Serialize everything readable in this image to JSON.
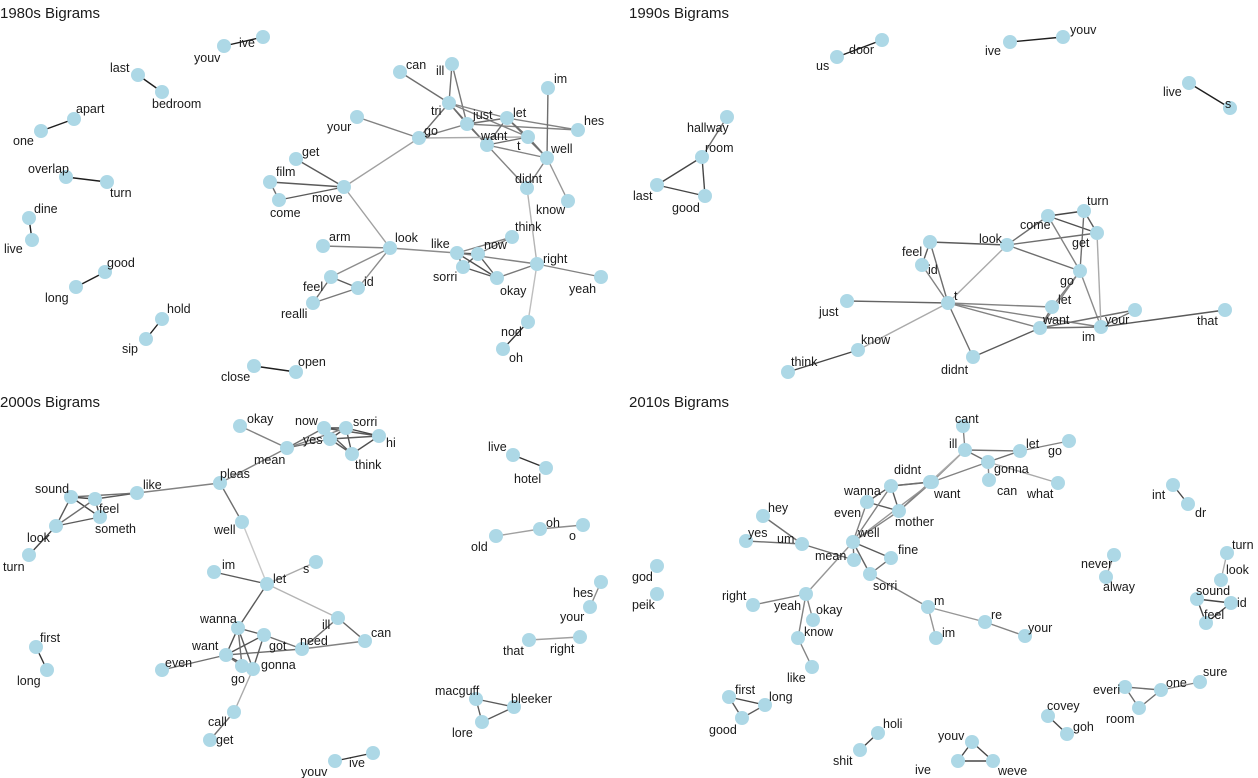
{
  "panels": [
    {
      "title": "1980s Bigrams",
      "nodes": [
        "youv",
        "ive",
        "last",
        "bedroom",
        "apart",
        "one",
        "overlap",
        "turn",
        "dine",
        "live",
        "good",
        "long",
        "hold",
        "sip",
        "close",
        "open",
        "can",
        "ill",
        "im",
        "tri",
        "just",
        "let",
        "your",
        "go",
        "want",
        "t",
        "hes",
        "well",
        "get",
        "film",
        "move",
        "come",
        "didnt",
        "know",
        "arm",
        "look",
        "like",
        "now",
        "think",
        "right",
        "yeah",
        "feel",
        "id",
        "realli",
        "sorri",
        "okay",
        "nod",
        "oh"
      ],
      "edges": [
        [
          "youv",
          "ive",
          1
        ],
        [
          "last",
          "bedroom",
          1
        ],
        [
          "one",
          "apart",
          1
        ],
        [
          "overlap",
          "turn",
          1
        ],
        [
          "dine",
          "live",
          1
        ],
        [
          "long",
          "good",
          1
        ],
        [
          "sip",
          "hold",
          1
        ],
        [
          "close",
          "open",
          1
        ],
        [
          "can",
          "tri",
          0.6
        ],
        [
          "ill",
          "tri",
          0.6
        ],
        [
          "ill",
          "just",
          0.55
        ],
        [
          "tri",
          "just",
          0.7
        ],
        [
          "tri",
          "go",
          0.6
        ],
        [
          "tri",
          "want",
          0.6
        ],
        [
          "tri",
          "let",
          0.5
        ],
        [
          "tri",
          "t",
          0.5
        ],
        [
          "just",
          "want",
          0.6
        ],
        [
          "just",
          "let",
          0.6
        ],
        [
          "just",
          "hes",
          0.5
        ],
        [
          "want",
          "let",
          0.6
        ],
        [
          "want",
          "t",
          0.6
        ],
        [
          "want",
          "well",
          0.5
        ],
        [
          "let",
          "well",
          0.6
        ],
        [
          "let",
          "hes",
          0.5
        ],
        [
          "let",
          "t",
          0.6
        ],
        [
          "im",
          "well",
          0.6
        ],
        [
          "t",
          "well",
          0.6
        ],
        [
          "your",
          "go",
          0.5
        ],
        [
          "go",
          "just",
          0.5
        ],
        [
          "go",
          "t",
          0.3
        ],
        [
          "go",
          "move",
          0.35
        ],
        [
          "get",
          "move",
          0.7
        ],
        [
          "film",
          "move",
          0.7
        ],
        [
          "come",
          "move",
          0.7
        ],
        [
          "film",
          "come",
          0.6
        ],
        [
          "want",
          "didnt",
          0.5
        ],
        [
          "didnt",
          "well",
          0.5
        ],
        [
          "well",
          "know",
          0.4
        ],
        [
          "move",
          "look",
          0.35
        ],
        [
          "arm",
          "look",
          0.5
        ],
        [
          "look",
          "like",
          0.45
        ],
        [
          "look",
          "feel",
          0.45
        ],
        [
          "look",
          "id",
          0.45
        ],
        [
          "feel",
          "id",
          0.7
        ],
        [
          "feel",
          "realli",
          0.6
        ],
        [
          "id",
          "realli",
          0.55
        ],
        [
          "like",
          "now",
          0.75
        ],
        [
          "like",
          "sorri",
          0.75
        ],
        [
          "like",
          "okay",
          0.75
        ],
        [
          "now",
          "sorri",
          0.75
        ],
        [
          "now",
          "okay",
          0.7
        ],
        [
          "sorri",
          "okay",
          0.7
        ],
        [
          "like",
          "think",
          0.5
        ],
        [
          "now",
          "think",
          0.5
        ],
        [
          "like",
          "right",
          0.5
        ],
        [
          "okay",
          "right",
          0.55
        ],
        [
          "right",
          "yeah",
          0.5
        ],
        [
          "right",
          "didnt",
          0.25
        ],
        [
          "right",
          "nod",
          0.2
        ],
        [
          "nod",
          "oh",
          0.9
        ]
      ]
    },
    {
      "title": "1990s Bigrams",
      "nodes": [
        "door",
        "us",
        "youv",
        "ive",
        "live",
        "s",
        "hallway",
        "room",
        "last",
        "good",
        "turn",
        "come",
        "look",
        "get",
        "feel",
        "id",
        "go",
        "just",
        "t",
        "let",
        "want",
        "your",
        "that",
        "im",
        "know",
        "think",
        "didnt"
      ],
      "edges": [
        [
          "us",
          "door",
          1
        ],
        [
          "ive",
          "youv",
          1
        ],
        [
          "live",
          "s",
          1
        ],
        [
          "hallway",
          "room",
          0.6
        ],
        [
          "room",
          "last",
          0.8
        ],
        [
          "room",
          "good",
          0.8
        ],
        [
          "last",
          "good",
          0.8
        ],
        [
          "come",
          "turn",
          0.8
        ],
        [
          "come",
          "get",
          0.75
        ],
        [
          "come",
          "look",
          0.6
        ],
        [
          "turn",
          "get",
          0.7
        ],
        [
          "turn",
          "go",
          0.6
        ],
        [
          "look",
          "get",
          0.6
        ],
        [
          "look",
          "go",
          0.6
        ],
        [
          "come",
          "go",
          0.5
        ],
        [
          "feel",
          "look",
          0.7
        ],
        [
          "feel",
          "id",
          0.7
        ],
        [
          "feel",
          "t",
          0.6
        ],
        [
          "id",
          "t",
          0.5
        ],
        [
          "look",
          "t",
          0.3
        ],
        [
          "just",
          "t",
          0.65
        ],
        [
          "t",
          "let",
          0.5
        ],
        [
          "t",
          "want",
          0.5
        ],
        [
          "t",
          "your",
          0.5
        ],
        [
          "t",
          "know",
          0.3
        ],
        [
          "t",
          "didnt",
          0.6
        ],
        [
          "go",
          "let",
          0.5
        ],
        [
          "go",
          "want",
          0.5
        ],
        [
          "go",
          "your",
          0.45
        ],
        [
          "let",
          "want",
          0.6
        ],
        [
          "want",
          "your",
          0.6
        ],
        [
          "want",
          "im",
          0.6
        ],
        [
          "im",
          "your",
          0.55
        ],
        [
          "your",
          "that",
          0.7
        ],
        [
          "want",
          "didnt",
          0.7
        ],
        [
          "know",
          "think",
          0.8
        ],
        [
          "get",
          "your",
          0.3
        ]
      ]
    },
    {
      "title": "2000s Bigrams",
      "nodes": [
        "okay",
        "now",
        "sorri",
        "yes",
        "hi",
        "mean",
        "think",
        "pleas",
        "like",
        "sound",
        "feel",
        "someth",
        "look",
        "turn",
        "well",
        "im",
        "let",
        "s",
        "wanna",
        "ill",
        "can",
        "want",
        "got",
        "need",
        "even",
        "gonna",
        "go",
        "call",
        "get",
        "first",
        "long",
        "youv",
        "ive",
        "live",
        "hotel",
        "oh",
        "old",
        "o",
        "hes",
        "your",
        "that",
        "right",
        "macguff",
        "bleeker",
        "lore"
      ],
      "edges": [
        [
          "okay",
          "mean",
          0.5
        ],
        [
          "now",
          "mean",
          0.6
        ],
        [
          "now",
          "yes",
          0.8
        ],
        [
          "now",
          "sorri",
          0.8
        ],
        [
          "now",
          "hi",
          0.7
        ],
        [
          "now",
          "think",
          0.7
        ],
        [
          "yes",
          "sorri",
          0.75
        ],
        [
          "yes",
          "hi",
          0.7
        ],
        [
          "yes",
          "think",
          0.7
        ],
        [
          "sorri",
          "hi",
          0.8
        ],
        [
          "sorri",
          "think",
          0.75
        ],
        [
          "hi",
          "think",
          0.75
        ],
        [
          "mean",
          "yes",
          0.6
        ],
        [
          "mean",
          "sorri",
          0.5
        ],
        [
          "pleas",
          "mean",
          0.5
        ],
        [
          "like",
          "pleas",
          0.5
        ],
        [
          "sound",
          "feel",
          0.8
        ],
        [
          "sound",
          "someth",
          0.8
        ],
        [
          "feel",
          "someth",
          0.8
        ],
        [
          "sound",
          "look",
          0.7
        ],
        [
          "look",
          "someth",
          0.7
        ],
        [
          "look",
          "feel",
          0.6
        ],
        [
          "feel",
          "like",
          0.7
        ],
        [
          "sound",
          "like",
          0.6
        ],
        [
          "look",
          "turn",
          0.8
        ],
        [
          "pleas",
          "well",
          0.6
        ],
        [
          "well",
          "let",
          0.15
        ],
        [
          "im",
          "let",
          0.7
        ],
        [
          "let",
          "s",
          0.3
        ],
        [
          "let",
          "wanna",
          0.7
        ],
        [
          "let",
          "ill",
          0.25
        ],
        [
          "ill",
          "can",
          0.65
        ],
        [
          "ill",
          "need",
          0.6
        ],
        [
          "can",
          "need",
          0.5
        ],
        [
          "want",
          "need",
          0.6
        ],
        [
          "wanna",
          "want",
          0.75
        ],
        [
          "wanna",
          "got",
          0.7
        ],
        [
          "wanna",
          "gonna",
          0.7
        ],
        [
          "want",
          "got",
          0.75
        ],
        [
          "want",
          "gonna",
          0.75
        ],
        [
          "got",
          "gonna",
          0.7
        ],
        [
          "got",
          "need",
          0.6
        ],
        [
          "even",
          "want",
          0.6
        ],
        [
          "want",
          "go",
          0.6
        ],
        [
          "go",
          "gonna",
          0.6
        ],
        [
          "wanna",
          "go",
          0.6
        ],
        [
          "gonna",
          "call",
          0.3
        ],
        [
          "call",
          "get",
          0.6
        ],
        [
          "first",
          "long",
          0.9
        ],
        [
          "youv",
          "ive",
          0.9
        ],
        [
          "live",
          "hotel",
          0.9
        ],
        [
          "old",
          "oh",
          0.35
        ],
        [
          "oh",
          "o",
          0.45
        ],
        [
          "hes",
          "your",
          0.45
        ],
        [
          "that",
          "right",
          0.35
        ],
        [
          "macguff",
          "bleeker",
          0.7
        ],
        [
          "macguff",
          "lore",
          0.7
        ],
        [
          "bleeker",
          "lore",
          0.7
        ]
      ]
    },
    {
      "title": "2010s Bigrams",
      "nodes": [
        "cant",
        "ill",
        "let",
        "go",
        "gonna",
        "what",
        "didnt",
        "wanna",
        "want",
        "can",
        "even",
        "mother",
        "hey",
        "yes",
        "um",
        "well",
        "fine",
        "mean",
        "sorri",
        "m",
        "re",
        "your",
        "im",
        "right",
        "yeah",
        "okay",
        "know",
        "like",
        "first",
        "long",
        "good",
        "holi",
        "shit",
        "youv",
        "ive",
        "weve",
        "int",
        "dr",
        "never",
        "alway",
        "turn",
        "look",
        "sound",
        "id",
        "feel",
        "one",
        "sure",
        "everi",
        "room",
        "covey",
        "goh",
        "god",
        "peik"
      ],
      "edges": [
        [
          "cant",
          "ill",
          0.5
        ],
        [
          "ill",
          "let",
          0.6
        ],
        [
          "ill",
          "gonna",
          0.6
        ],
        [
          "ill",
          "want",
          0.4
        ],
        [
          "ill",
          "didnt",
          0.3
        ],
        [
          "let",
          "go",
          0.5
        ],
        [
          "let",
          "gonna",
          0.6
        ],
        [
          "gonna",
          "can",
          0.5
        ],
        [
          "gonna",
          "what",
          0.3
        ],
        [
          "gonna",
          "want",
          0.5
        ],
        [
          "didnt",
          "want",
          0.6
        ],
        [
          "didnt",
          "wanna",
          0.6
        ],
        [
          "didnt",
          "mother",
          0.5
        ],
        [
          "wanna",
          "want",
          0.6
        ],
        [
          "wanna",
          "even",
          0.7
        ],
        [
          "wanna",
          "mother",
          0.7
        ],
        [
          "even",
          "mother",
          0.7
        ],
        [
          "want",
          "mother",
          0.5
        ],
        [
          "want",
          "well",
          0.4
        ],
        [
          "even",
          "well",
          0.5
        ],
        [
          "mother",
          "well",
          0.5
        ],
        [
          "wanna",
          "well",
          0.5
        ],
        [
          "hey",
          "um",
          0.6
        ],
        [
          "yes",
          "um",
          0.6
        ],
        [
          "um",
          "mean",
          0.6
        ],
        [
          "mean",
          "well",
          0.6
        ],
        [
          "well",
          "fine",
          0.7
        ],
        [
          "well",
          "sorri",
          0.65
        ],
        [
          "fine",
          "sorri",
          0.6
        ],
        [
          "sorri",
          "m",
          0.5
        ],
        [
          "m",
          "im",
          0.4
        ],
        [
          "m",
          "re",
          0.4
        ],
        [
          "re",
          "your",
          0.5
        ],
        [
          "well",
          "yeah",
          0.4
        ],
        [
          "right",
          "yeah",
          0.5
        ],
        [
          "yeah",
          "okay",
          0.5
        ],
        [
          "yeah",
          "know",
          0.5
        ],
        [
          "know",
          "like",
          0.5
        ],
        [
          "first",
          "long",
          0.8
        ],
        [
          "first",
          "good",
          0.7
        ],
        [
          "good",
          "long",
          0.7
        ],
        [
          "shit",
          "holi",
          0.8
        ],
        [
          "youv",
          "ive",
          0.8
        ],
        [
          "youv",
          "weve",
          0.8
        ],
        [
          "ive",
          "weve",
          0.8
        ],
        [
          "int",
          "dr",
          0.8
        ],
        [
          "never",
          "alway",
          0.4
        ],
        [
          "turn",
          "look",
          0.3
        ],
        [
          "sound",
          "id",
          0.8
        ],
        [
          "sound",
          "feel",
          0.8
        ],
        [
          "id",
          "feel",
          0.8
        ],
        [
          "one",
          "sure",
          0.5
        ],
        [
          "everi",
          "one",
          0.6
        ],
        [
          "everi",
          "room",
          0.6
        ],
        [
          "room",
          "one",
          0.6
        ],
        [
          "covey",
          "goh",
          0.8
        ]
      ]
    }
  ]
}
